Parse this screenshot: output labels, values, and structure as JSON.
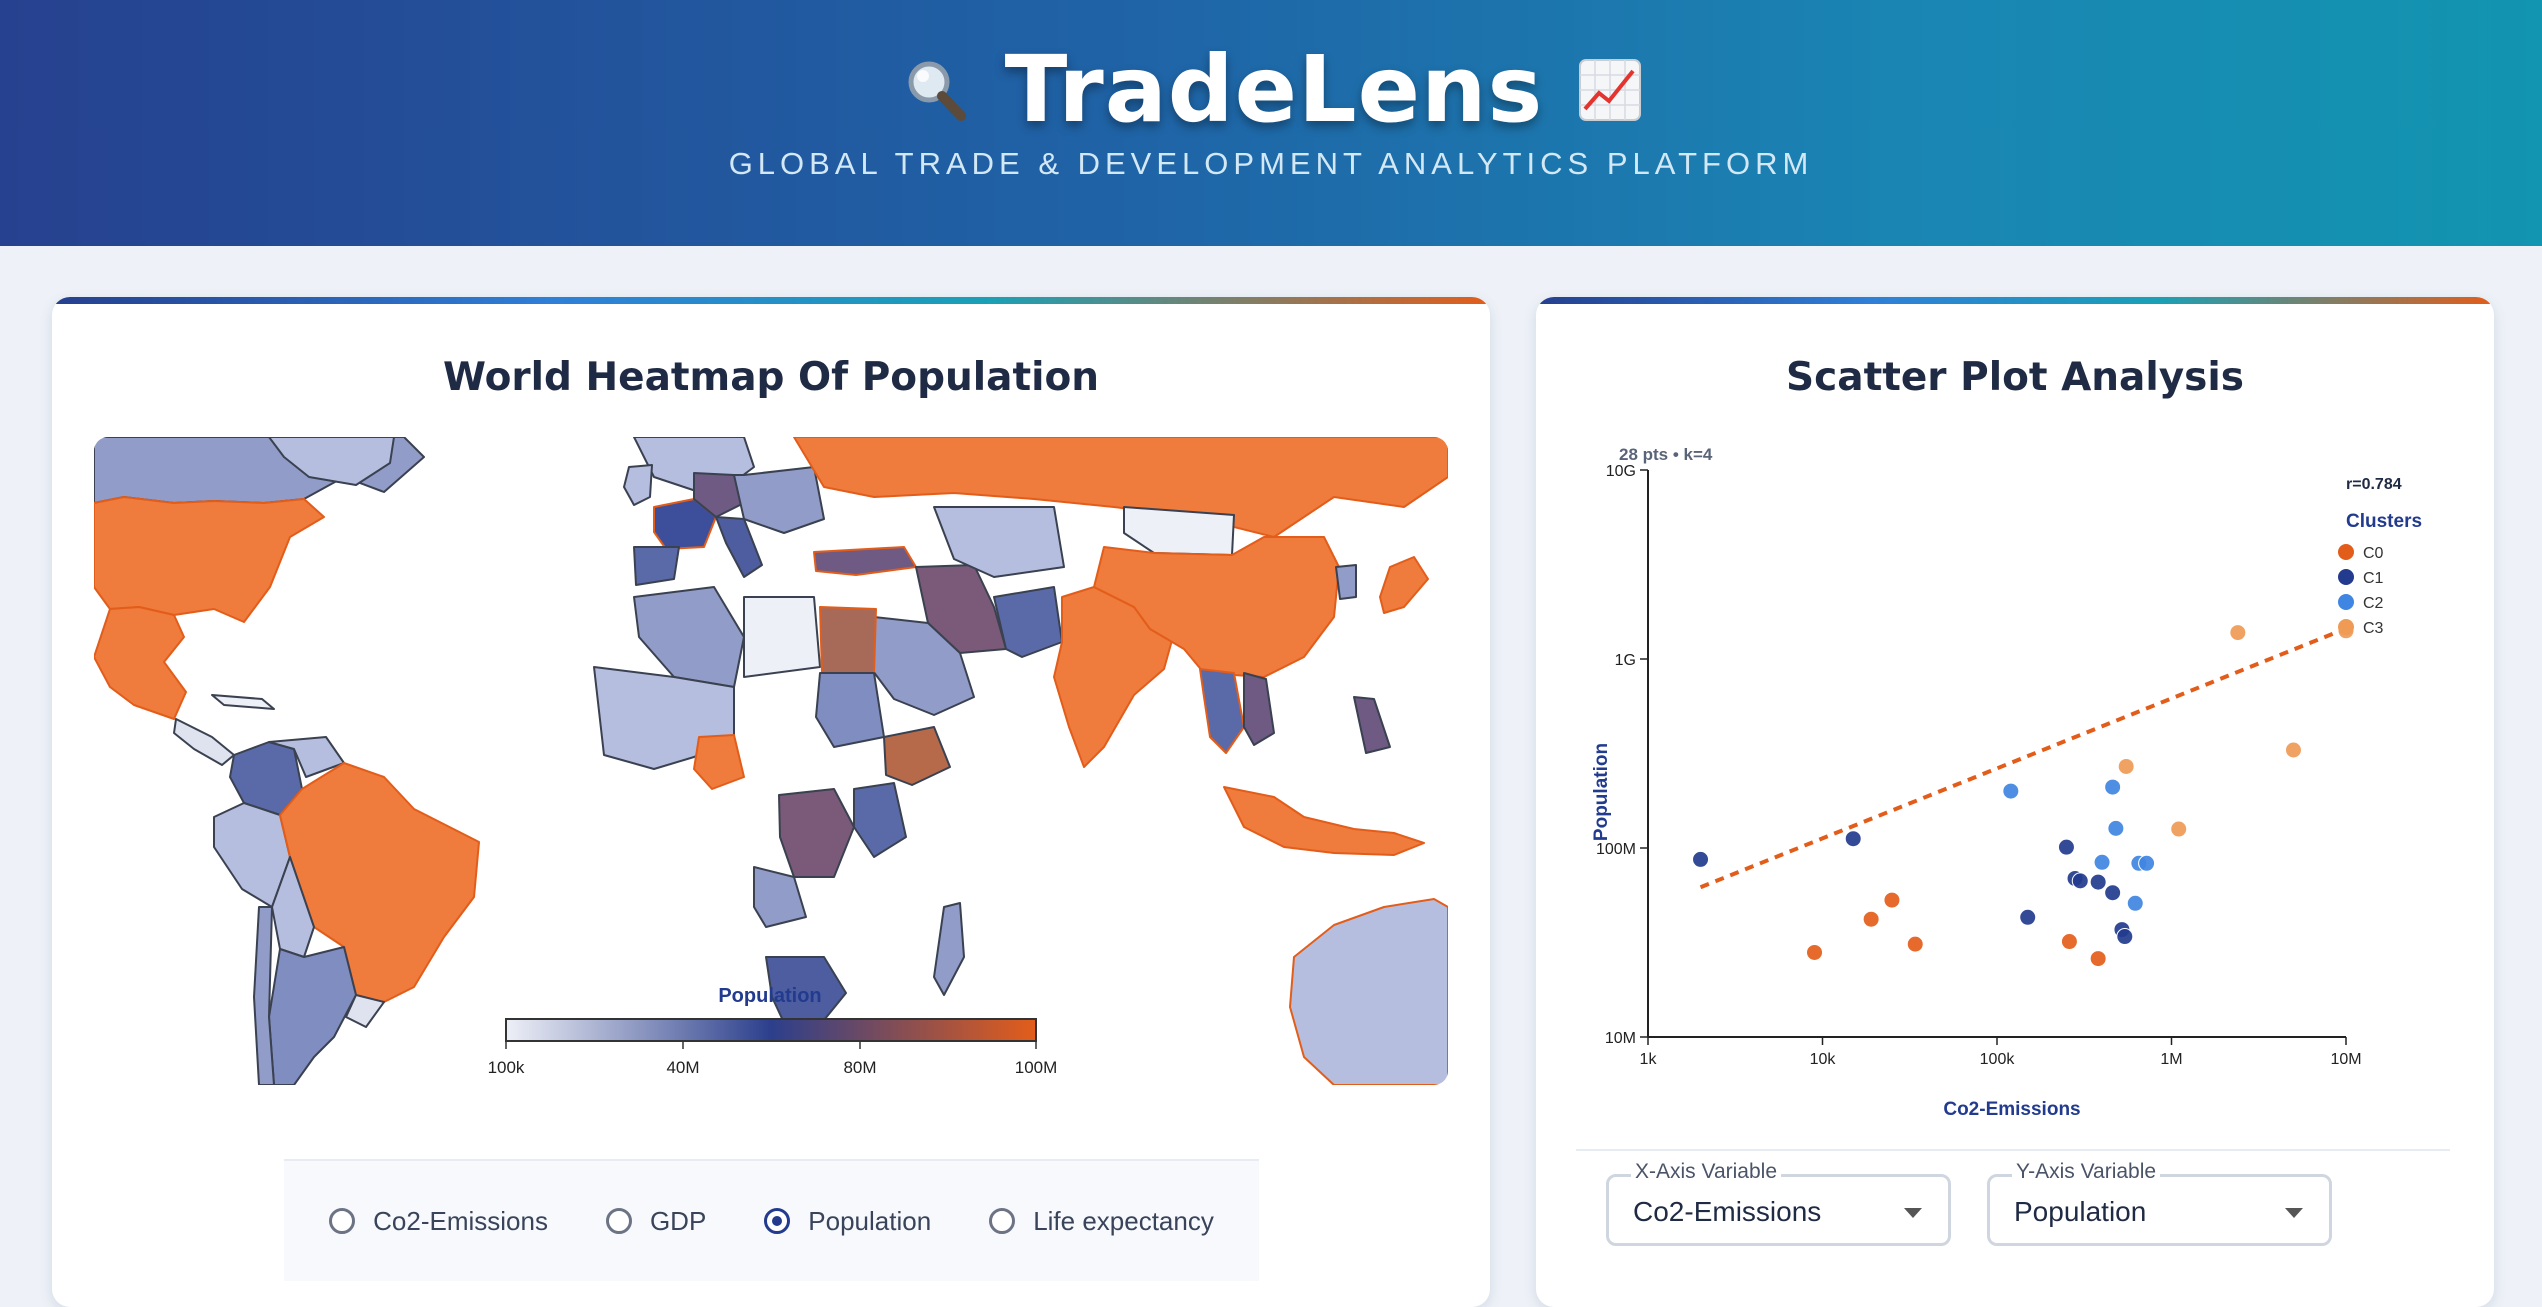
{
  "header": {
    "title": "TradeLens",
    "subtitle": "GLOBAL TRADE & DEVELOPMENT ANALYTICS PLATFORM",
    "left_icon": "magnifier-icon",
    "right_icon": "chart-up-icon"
  },
  "map_panel": {
    "title": "World Heatmap Of Population",
    "legend": {
      "title": "Population",
      "ticks": [
        "100k",
        "40M",
        "80M",
        "100M"
      ],
      "color_low": "#eef0f7",
      "color_mid": "#2c3f8c",
      "color_high": "#e35d1a"
    },
    "radios": [
      {
        "label": "Co2-Emissions",
        "selected": false
      },
      {
        "label": "GDP",
        "selected": false
      },
      {
        "label": "Population",
        "selected": true
      },
      {
        "label": "Life expectancy",
        "selected": false
      }
    ]
  },
  "scatter_panel": {
    "title": "Scatter Plot Analysis",
    "x_select": {
      "label": "X-Axis Variable",
      "value": "Co2-Emissions"
    },
    "y_select": {
      "label": "Y-Axis Variable",
      "value": "Population"
    }
  },
  "colors": {
    "accent_orange": "#e35d1a",
    "accent_navy": "#223b8e"
  },
  "chart_data": {
    "type": "scatter",
    "title": "",
    "info": "28 pts • k=4",
    "correlation": "r=0.784",
    "xlabel": "Co2-Emissions",
    "ylabel": "Population",
    "xscale": "log",
    "yscale": "log",
    "xlim": [
      1000,
      10000000
    ],
    "ylim": [
      10000000,
      10000000000
    ],
    "x_ticks": [
      {
        "v": 1000,
        "label": "1k"
      },
      {
        "v": 10000,
        "label": "10k"
      },
      {
        "v": 100000,
        "label": "100k"
      },
      {
        "v": 1000000,
        "label": "1M"
      },
      {
        "v": 10000000,
        "label": "10M"
      }
    ],
    "y_ticks": [
      {
        "v": 10000000,
        "label": "10M"
      },
      {
        "v": 100000000,
        "label": "100M"
      },
      {
        "v": 1000000000,
        "label": "1G"
      },
      {
        "v": 10000000000,
        "label": "10G"
      }
    ],
    "legend_title": "Clusters",
    "legend_placement": "top-right",
    "trendline": {
      "x": [
        2000,
        10000000
      ],
      "y": [
        62000000,
        1450000000
      ]
    },
    "series": [
      {
        "name": "C0",
        "color": "#e35d1a",
        "points": [
          {
            "x": 9000,
            "y": 28000000
          },
          {
            "x": 19000,
            "y": 42000000
          },
          {
            "x": 25000,
            "y": 53000000
          },
          {
            "x": 34000,
            "y": 31000000
          },
          {
            "x": 260000,
            "y": 32000000
          },
          {
            "x": 380000,
            "y": 26000000
          }
        ]
      },
      {
        "name": "C1",
        "color": "#223b8e",
        "points": [
          {
            "x": 2000,
            "y": 87000000
          },
          {
            "x": 15000,
            "y": 112000000
          },
          {
            "x": 150000,
            "y": 43000000
          },
          {
            "x": 250000,
            "y": 101000000
          },
          {
            "x": 280000,
            "y": 69000000
          },
          {
            "x": 300000,
            "y": 67000000
          },
          {
            "x": 380000,
            "y": 66000000
          },
          {
            "x": 460000,
            "y": 58000000
          },
          {
            "x": 520000,
            "y": 37000000
          },
          {
            "x": 540000,
            "y": 34000000
          }
        ]
      },
      {
        "name": "C2",
        "color": "#3f86e2",
        "points": [
          {
            "x": 120000,
            "y": 200000000
          },
          {
            "x": 400000,
            "y": 84000000
          },
          {
            "x": 460000,
            "y": 210000000
          },
          {
            "x": 480000,
            "y": 127000000
          },
          {
            "x": 620000,
            "y": 51000000
          },
          {
            "x": 650000,
            "y": 83000000
          },
          {
            "x": 720000,
            "y": 83000000
          }
        ]
      },
      {
        "name": "C3",
        "color": "#ef9a55",
        "points": [
          {
            "x": 550000,
            "y": 270000000
          },
          {
            "x": 1100000,
            "y": 126000000
          },
          {
            "x": 2400000,
            "y": 1380000000
          },
          {
            "x": 5000000,
            "y": 330000000
          },
          {
            "x": 10000000,
            "y": 1410000000
          }
        ]
      }
    ]
  }
}
